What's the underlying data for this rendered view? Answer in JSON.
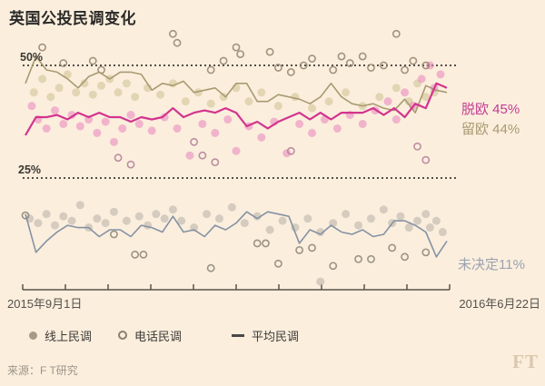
{
  "title": "英国公投民调变化",
  "source": "来源：F T研究",
  "logo": "FT",
  "axis": {
    "start_label": "2015年9月1日",
    "end_label": "2016年6月22日"
  },
  "legend": [
    {
      "marker": "filled-dot",
      "label": "线上民调"
    },
    {
      "marker": "open-dot",
      "label": "电话民调"
    },
    {
      "marker": "line-dash",
      "label": "平均民调"
    }
  ],
  "annotations": {
    "leave": "脱欧 45%",
    "remain": "留欧 44%",
    "undecided": "未决定11%"
  },
  "colors": {
    "background": "#fbeedd",
    "grid": "#3e3a34",
    "axis": "#5a544c",
    "leave_line": "#d3348e",
    "leave_label": "#c33b90",
    "remain_line": "#a89b71",
    "remain_label": "#a89b71",
    "undecided_line": "#8592a4",
    "undecided_label": "#9aa3b0",
    "leave_dot": "#e983bb",
    "remain_dot": "#cdc18f",
    "undecided_dot": "#b7b1a6",
    "remain_phone_stroke": "#93836c",
    "leave_phone_stroke": "#b07d97",
    "undecided_phone_stroke": "#8a8374"
  },
  "chart_data": {
    "type": "line",
    "title": "英国公投民调变化",
    "x_range": [
      "2015年9月1日",
      "2016年6月22日"
    ],
    "y_unit": "%",
    "x_tick_count": 10,
    "reference_lines": [
      {
        "label": "50%",
        "value": 50
      },
      {
        "label": "25%",
        "value": 25
      }
    ],
    "series": [
      {
        "name": "留欧 平均民调",
        "final_value": 44,
        "color": "#a89b71",
        "width": 1.6,
        "values": [
          46,
          52,
          49,
          48.5,
          47,
          45,
          47.5,
          48.5,
          47,
          48.5,
          48.5,
          48,
          44.5,
          46,
          45.5,
          46.5,
          44,
          44.5,
          45,
          43,
          46,
          46,
          42,
          42,
          43.5,
          43,
          42.5,
          41.5,
          43,
          46,
          43,
          41.5,
          41,
          41.5,
          40.5,
          40,
          42.5,
          39.5,
          45.5,
          44.5,
          44
        ]
      },
      {
        "name": "未决定 平均民调",
        "final_value": 11,
        "color": "#8592a4",
        "width": 1.6,
        "values": [
          17,
          8.5,
          11,
          13,
          14.5,
          14,
          14,
          12,
          13.5,
          13.5,
          12,
          14.5,
          14,
          13,
          16.5,
          13,
          13.5,
          12,
          14.5,
          13.5,
          15,
          17.5,
          16,
          17.5,
          17,
          16.5,
          10.5,
          13.5,
          12.5,
          14.5,
          13,
          12.5,
          13.5,
          12,
          12.5,
          15.5,
          15.5,
          14.5,
          13,
          7.5,
          11
        ]
      },
      {
        "name": "脱欧 平均民调",
        "final_value": 45,
        "color": "#d3348e",
        "width": 2.2,
        "values": [
          34.5,
          38.5,
          38.5,
          39,
          38,
          39.5,
          38.5,
          39.5,
          38.5,
          38.5,
          37.5,
          38.5,
          38,
          38.5,
          40.5,
          38.5,
          39.5,
          40,
          39.5,
          40.5,
          39.5,
          36.5,
          37.5,
          36,
          37.5,
          38.5,
          39.5,
          38,
          39.5,
          38,
          39.5,
          39.5,
          39.5,
          40.5,
          39,
          40.5,
          38.5,
          41.5,
          40.5,
          46,
          45
        ]
      }
    ],
    "scatter": {
      "leave_online": [
        [
          0.015,
          41
        ],
        [
          0.03,
          38
        ],
        [
          0.05,
          36
        ],
        [
          0.07,
          40
        ],
        [
          0.09,
          37
        ],
        [
          0.11,
          39
        ],
        [
          0.13,
          36.5
        ],
        [
          0.15,
          38
        ],
        [
          0.17,
          35
        ],
        [
          0.19,
          37.5
        ],
        [
          0.21,
          33
        ],
        [
          0.23,
          36
        ],
        [
          0.25,
          39
        ],
        [
          0.27,
          37
        ],
        [
          0.3,
          35.5
        ],
        [
          0.33,
          38.5
        ],
        [
          0.36,
          36
        ],
        [
          0.39,
          30
        ],
        [
          0.42,
          37
        ],
        [
          0.45,
          35
        ],
        [
          0.48,
          38
        ],
        [
          0.5,
          31
        ],
        [
          0.53,
          36.5
        ],
        [
          0.56,
          34
        ],
        [
          0.59,
          37.5
        ],
        [
          0.62,
          30.5
        ],
        [
          0.65,
          37
        ],
        [
          0.68,
          35
        ],
        [
          0.71,
          38
        ],
        [
          0.74,
          36
        ],
        [
          0.77,
          39
        ],
        [
          0.8,
          37
        ],
        [
          0.83,
          40
        ],
        [
          0.86,
          42
        ],
        [
          0.88,
          38
        ],
        [
          0.9,
          44
        ],
        [
          0.92,
          41
        ],
        [
          0.94,
          47
        ],
        [
          0.96,
          50
        ],
        [
          0.97,
          45
        ],
        [
          0.985,
          48
        ]
      ],
      "remain_online": [
        [
          0.02,
          44
        ],
        [
          0.04,
          47
        ],
        [
          0.06,
          43
        ],
        [
          0.08,
          45
        ],
        [
          0.1,
          48
        ],
        [
          0.12,
          44
        ],
        [
          0.14,
          46
        ],
        [
          0.16,
          43.5
        ],
        [
          0.18,
          45.5
        ],
        [
          0.2,
          47
        ],
        [
          0.22,
          44
        ],
        [
          0.24,
          46
        ],
        [
          0.26,
          43
        ],
        [
          0.29,
          45
        ],
        [
          0.32,
          43.5
        ],
        [
          0.35,
          46
        ],
        [
          0.38,
          42
        ],
        [
          0.41,
          44
        ],
        [
          0.44,
          41.5
        ],
        [
          0.47,
          43
        ],
        [
          0.5,
          45
        ],
        [
          0.53,
          42
        ],
        [
          0.56,
          44
        ],
        [
          0.6,
          41
        ],
        [
          0.64,
          43
        ],
        [
          0.68,
          40.5
        ],
        [
          0.72,
          42
        ],
        [
          0.76,
          44
        ],
        [
          0.8,
          41
        ],
        [
          0.84,
          43
        ],
        [
          0.88,
          45
        ],
        [
          0.91,
          42
        ],
        [
          0.93,
          46
        ],
        [
          0.95,
          43
        ],
        [
          0.97,
          44
        ]
      ],
      "remain_phone": [
        [
          0.04,
          54
        ],
        [
          0.09,
          50.5
        ],
        [
          0.16,
          51
        ],
        [
          0.18,
          49
        ],
        [
          0.35,
          57
        ],
        [
          0.36,
          55
        ],
        [
          0.44,
          49
        ],
        [
          0.47,
          51
        ],
        [
          0.5,
          54
        ],
        [
          0.51,
          52.5
        ],
        [
          0.58,
          53
        ],
        [
          0.6,
          49.5
        ],
        [
          0.63,
          48.5
        ],
        [
          0.66,
          50
        ],
        [
          0.68,
          51.5
        ],
        [
          0.73,
          49
        ],
        [
          0.75,
          52
        ],
        [
          0.77,
          50.5
        ],
        [
          0.8,
          52
        ],
        [
          0.82,
          49.5
        ],
        [
          0.85,
          50
        ],
        [
          0.88,
          57
        ],
        [
          0.9,
          49
        ],
        [
          0.92,
          51
        ],
        [
          0.95,
          50
        ]
      ],
      "leave_phone": [
        [
          0.22,
          29.5
        ],
        [
          0.25,
          28
        ],
        [
          0.4,
          33
        ],
        [
          0.42,
          30
        ],
        [
          0.45,
          28.5
        ],
        [
          0.63,
          31
        ],
        [
          0.93,
          32
        ],
        [
          0.95,
          29
        ]
      ],
      "undecided_online": [
        [
          0.01,
          16
        ],
        [
          0.03,
          15
        ],
        [
          0.05,
          17
        ],
        [
          0.07,
          14.5
        ],
        [
          0.09,
          16.5
        ],
        [
          0.11,
          15.5
        ],
        [
          0.13,
          19
        ],
        [
          0.15,
          14
        ],
        [
          0.17,
          16
        ],
        [
          0.19,
          15
        ],
        [
          0.21,
          17.5
        ],
        [
          0.24,
          15.5
        ],
        [
          0.27,
          16.5
        ],
        [
          0.29,
          14.5
        ],
        [
          0.31,
          17
        ],
        [
          0.33,
          16
        ],
        [
          0.35,
          18
        ],
        [
          0.37,
          15.5
        ],
        [
          0.4,
          14
        ],
        [
          0.43,
          17
        ],
        [
          0.46,
          16
        ],
        [
          0.49,
          18.5
        ],
        [
          0.52,
          15
        ],
        [
          0.55,
          16.5
        ],
        [
          0.58,
          13.5
        ],
        [
          0.61,
          15.5
        ],
        [
          0.64,
          14
        ],
        [
          0.67,
          16
        ],
        [
          0.7,
          2
        ],
        [
          0.7,
          13
        ],
        [
          0.73,
          15
        ],
        [
          0.76,
          17
        ],
        [
          0.79,
          14.5
        ],
        [
          0.82,
          16
        ],
        [
          0.85,
          18
        ],
        [
          0.87,
          15
        ],
        [
          0.89,
          16.5
        ],
        [
          0.91,
          14
        ],
        [
          0.93,
          15.5
        ],
        [
          0.95,
          17
        ],
        [
          0.96,
          14
        ],
        [
          0.975,
          15.5
        ],
        [
          0.99,
          13
        ]
      ],
      "undecided_phone": [
        [
          0,
          16.7
        ],
        [
          0.21,
          12.5
        ],
        [
          0.26,
          8
        ],
        [
          0.28,
          8
        ],
        [
          0.44,
          5
        ],
        [
          0.55,
          10.5
        ],
        [
          0.57,
          10.5
        ],
        [
          0.6,
          6
        ],
        [
          0.65,
          9
        ],
        [
          0.68,
          9.5
        ],
        [
          0.73,
          5.5
        ],
        [
          0.79,
          7
        ],
        [
          0.82,
          7
        ],
        [
          0.87,
          9.5
        ],
        [
          0.9,
          7.5
        ],
        [
          0.95,
          8.5
        ]
      ]
    },
    "legend": [
      "线上民调",
      "电话民调",
      "平均民调"
    ]
  }
}
